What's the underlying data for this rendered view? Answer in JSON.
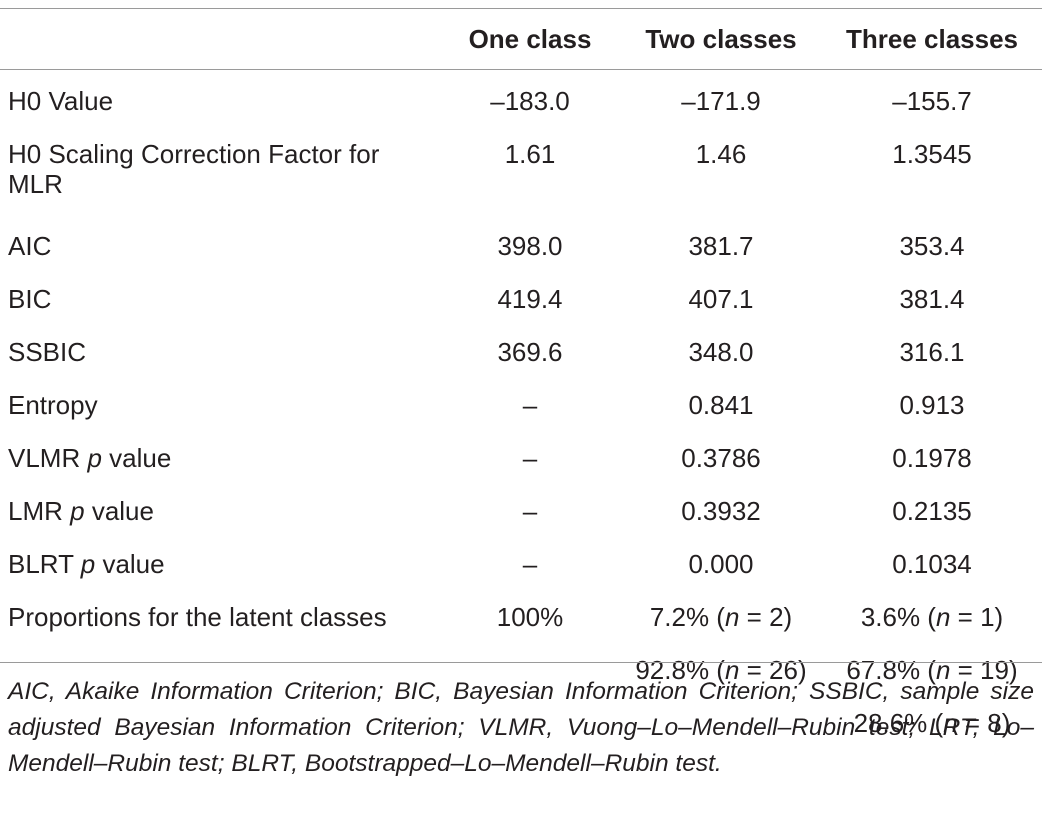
{
  "table": {
    "header": [
      "",
      "One class",
      "Two classes",
      "Three classes"
    ],
    "rows": [
      {
        "label_pre": "H0 Value",
        "label_em": "",
        "label_post": "",
        "values": [
          "–183.0",
          "–171.9",
          "–155.7"
        ]
      },
      {
        "label_pre": "H0 Scaling Correction Factor for MLR",
        "label_em": "",
        "label_post": "",
        "values": [
          "1.61",
          "1.46",
          "1.3545"
        ]
      },
      {
        "label_pre": "AIC",
        "label_em": "",
        "label_post": "",
        "values": [
          "398.0",
          "381.7",
          "353.4"
        ]
      },
      {
        "label_pre": "BIC",
        "label_em": "",
        "label_post": "",
        "values": [
          "419.4",
          "407.1",
          "381.4"
        ]
      },
      {
        "label_pre": "SSBIC",
        "label_em": "",
        "label_post": "",
        "values": [
          "369.6",
          "348.0",
          "316.1"
        ]
      },
      {
        "label_pre": "Entropy",
        "label_em": "",
        "label_post": "",
        "values": [
          "–",
          "0.841",
          "0.913"
        ]
      },
      {
        "label_pre": "VLMR ",
        "label_em": "p",
        "label_post": " value",
        "values": [
          "–",
          "0.3786",
          "0.1978"
        ]
      },
      {
        "label_pre": "LMR ",
        "label_em": "p",
        "label_post": " value",
        "values": [
          "–",
          "0.3932",
          "0.2135"
        ]
      },
      {
        "label_pre": "BLRT ",
        "label_em": "p",
        "label_post": " value",
        "values": [
          "–",
          "0.000",
          "0.1034"
        ]
      }
    ],
    "proportions": {
      "label": "Proportions for the latent classes",
      "one": [
        "100%"
      ],
      "two": [
        {
          "pre": "7.2% (",
          "n": "n",
          "post": " = 2)"
        },
        {
          "pre": "92.8% (",
          "n": "n",
          "post": " = 26)"
        }
      ],
      "three": [
        {
          "pre": "3.6% (",
          "n": "n",
          "post": " = 1)"
        },
        {
          "pre": "67.8% (",
          "n": "n",
          "post": " = 19)"
        },
        {
          "pre": "28.6% (",
          "n": "n",
          "post": " = 8)"
        }
      ]
    }
  },
  "footnote": "AIC, Akaike Information Criterion; BIC, Bayesian Information Criterion; SSBIC, sample size adjusted Bayesian Information Criterion; VLMR, Vuong–Lo–Mendell–Rubin test; LRT, Lo–Mendell–Rubin test; BLRT, Bootstrapped–Lo–Mendell–Rubin test."
}
